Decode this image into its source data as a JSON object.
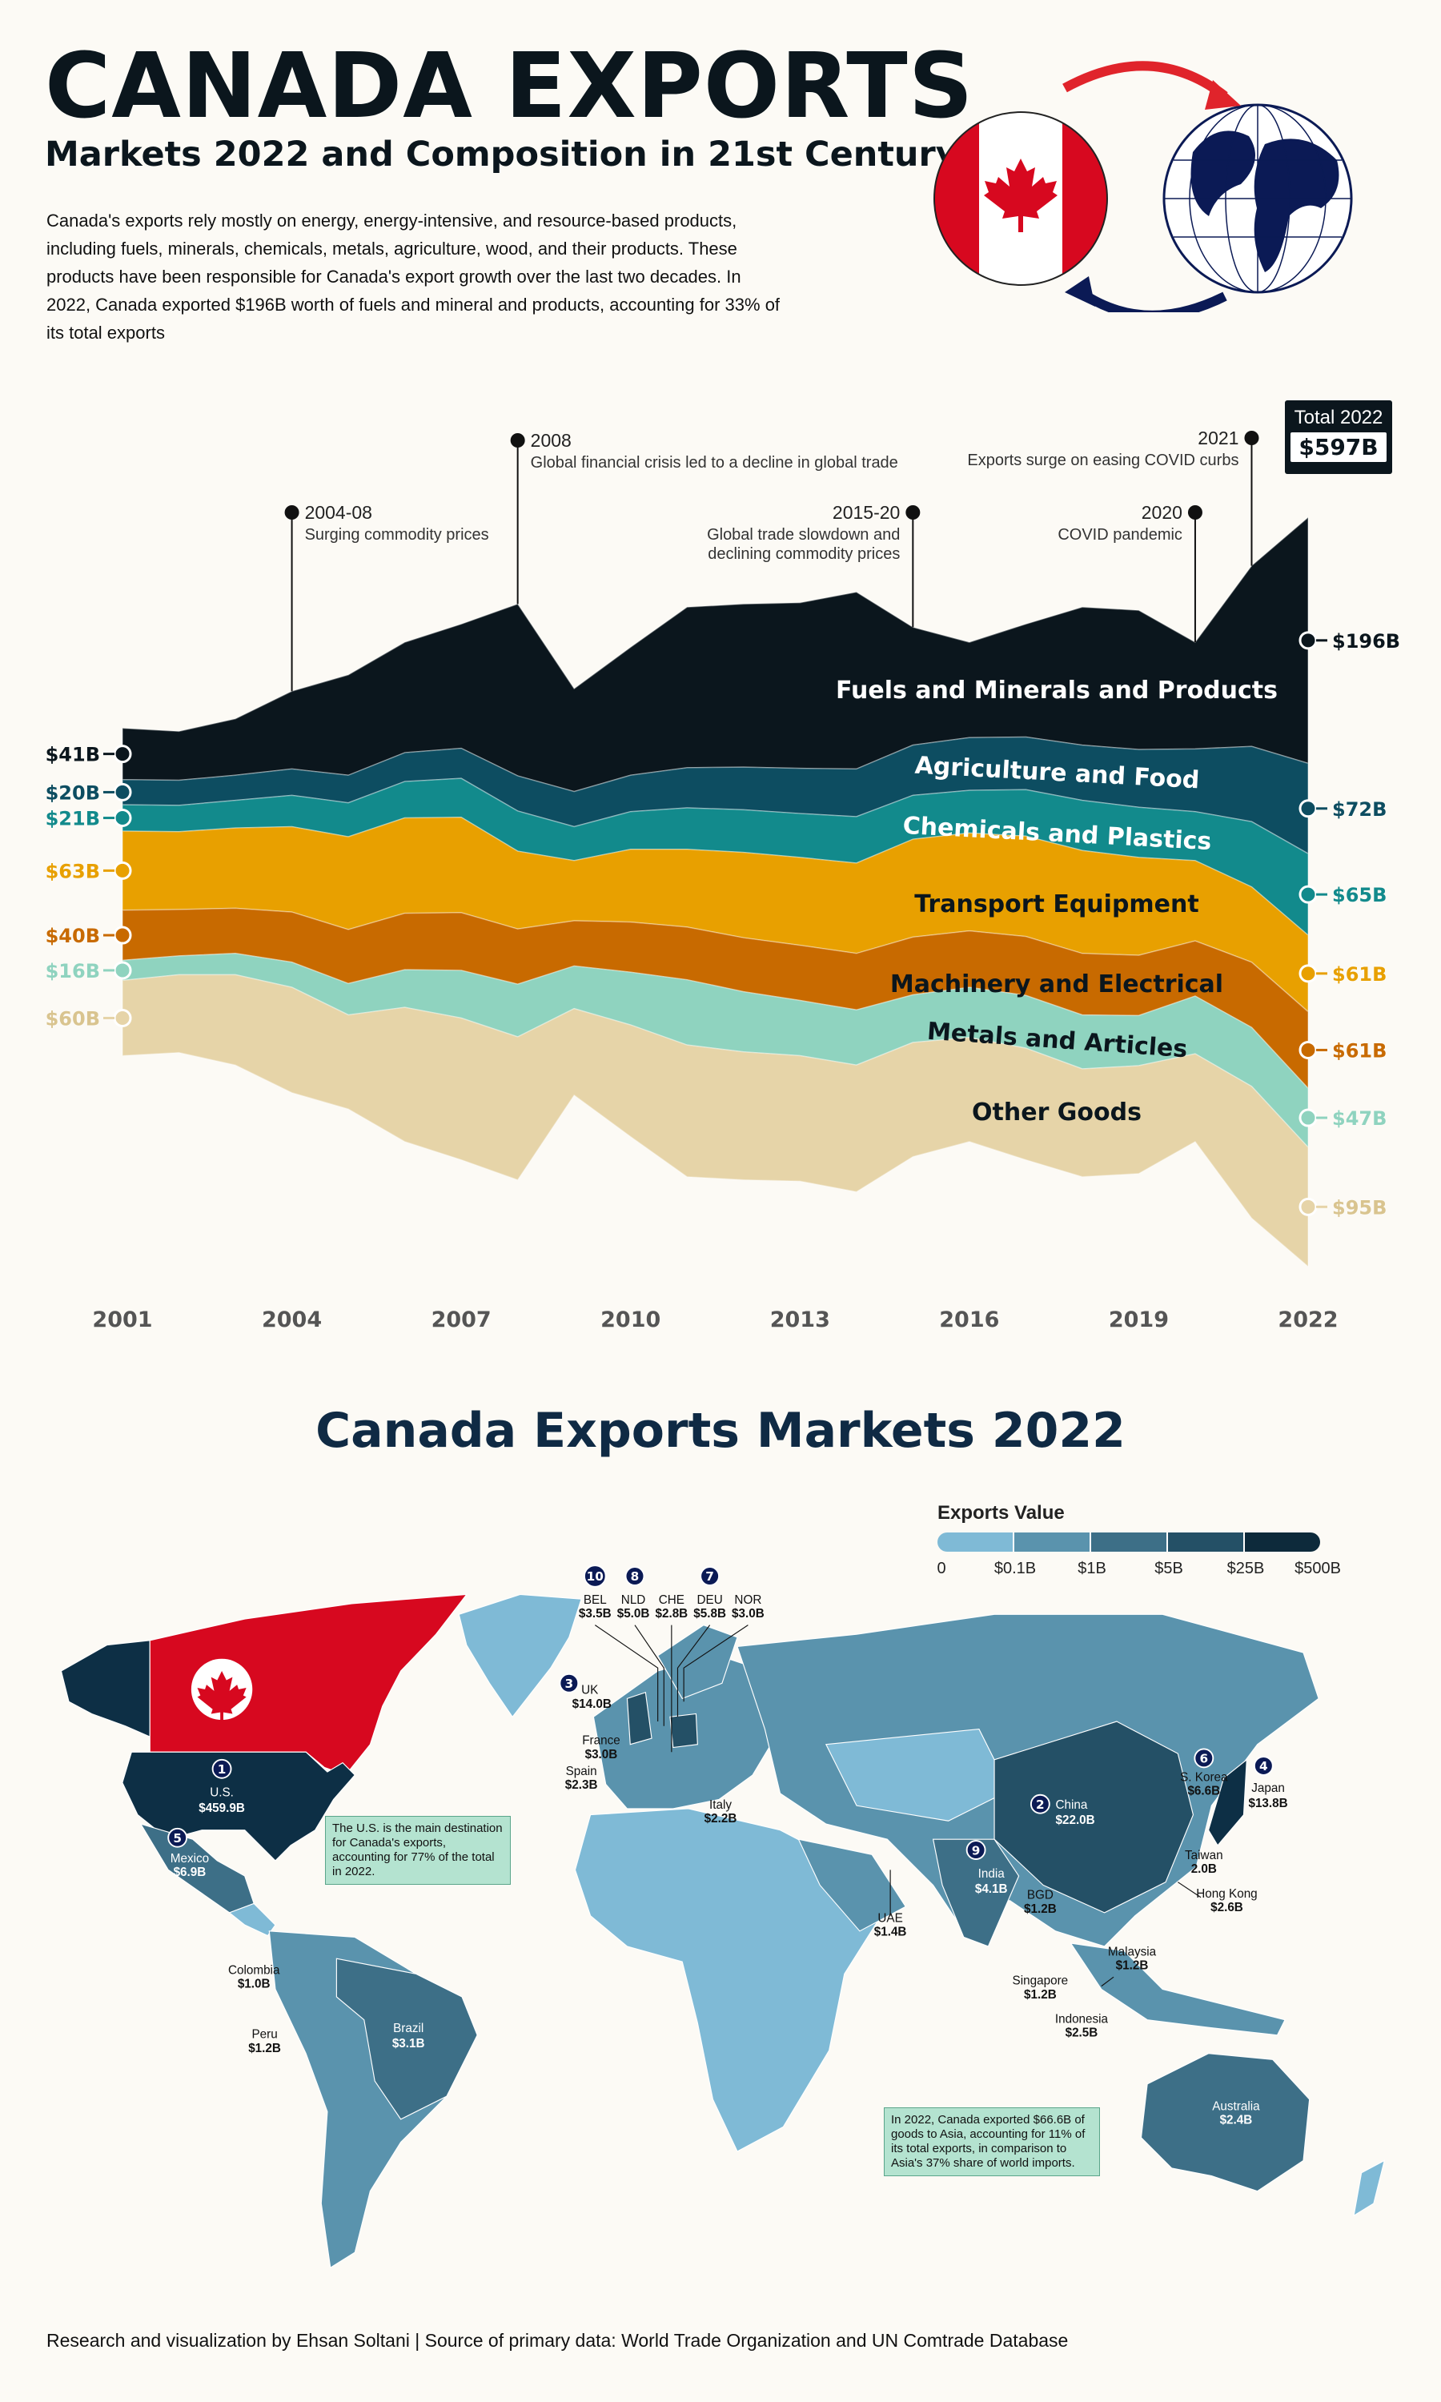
{
  "header": {
    "title": "CANADA EXPORTS",
    "subtitle": "Markets 2022 and Composition in 21st Century",
    "intro": "Canada's exports rely mostly on energy, energy-intensive, and resource-based products, including fuels, minerals, chemicals, metals, agriculture, wood, and their products. These products have been responsible for Canada's export growth over the last two decades. In 2022, Canada exported $196B worth of fuels  and mineral and products, accounting for 33% of its total exports"
  },
  "chart_data": {
    "type": "area",
    "subtype": "streamgraph-stacked",
    "x": [
      2001,
      2002,
      2003,
      2004,
      2005,
      2006,
      2007,
      2008,
      2009,
      2010,
      2011,
      2012,
      2013,
      2014,
      2015,
      2016,
      2017,
      2018,
      2019,
      2020,
      2021,
      2022
    ],
    "x_ticks": [
      "2001",
      "2004",
      "2007",
      "2010",
      "2013",
      "2016",
      "2019",
      "2022"
    ],
    "units": "USD billions",
    "total_label": "Total 2022",
    "total_value": "$597B",
    "series": [
      {
        "name": "Fuels and Minerals and Products",
        "color": "#0b161d",
        "label_color": "#ffffff",
        "start_label": "$41B",
        "end_label": "$196B",
        "values": [
          41,
          39,
          45,
          62,
          80,
          88,
          99,
          137,
          82,
          102,
          128,
          130,
          132,
          141,
          94,
          76,
          90,
          110,
          111,
          85,
          144,
          196
        ]
      },
      {
        "name": "Agriculture and Food",
        "color": "#0d4d61",
        "label_color": "#ffffff",
        "start_label": "$20B",
        "end_label": "$72B",
        "values": [
          20,
          20,
          20,
          21,
          22,
          23,
          24,
          28,
          28,
          29,
          32,
          34,
          36,
          38,
          40,
          42,
          42,
          44,
          46,
          50,
          60,
          72
        ]
      },
      {
        "name": "Chemicals and Plastics",
        "color": "#128a8c",
        "label_color": "#ffffff",
        "start_label": "$21B",
        "end_label": "$65B",
        "values": [
          21,
          21,
          22,
          25,
          27,
          29,
          31,
          32,
          27,
          30,
          33,
          34,
          35,
          37,
          35,
          34,
          37,
          40,
          40,
          39,
          52,
          65
        ]
      },
      {
        "name": "Transport Equipment",
        "color": "#e8a000",
        "label_color": "#0b161d",
        "start_label": "$63B",
        "end_label": "$61B",
        "values": [
          63,
          62,
          64,
          68,
          74,
          76,
          76,
          62,
          48,
          58,
          62,
          68,
          70,
          72,
          78,
          78,
          80,
          82,
          78,
          64,
          60,
          61
        ]
      },
      {
        "name": "Machinery and Electrical",
        "color": "#c86a00",
        "label_color": "#0b161d",
        "start_label": "$40B",
        "end_label": "$61B",
        "values": [
          40,
          37,
          36,
          40,
          43,
          45,
          46,
          44,
          36,
          40,
          42,
          43,
          44,
          45,
          46,
          45,
          47,
          49,
          48,
          44,
          52,
          61
        ]
      },
      {
        "name": "Metals and Articles",
        "color": "#8fd3bf",
        "label_color": "#0b161d",
        "start_label": "$16B",
        "end_label": "$47B",
        "values": [
          16,
          15,
          17,
          20,
          25,
          30,
          38,
          42,
          34,
          42,
          52,
          48,
          44,
          44,
          38,
          40,
          42,
          43,
          40,
          46,
          47,
          47
        ]
      },
      {
        "name": "Other Goods",
        "color": "#e6d4a8",
        "label_color": "#0b161d",
        "start_label": "$60B",
        "end_label": "$95B",
        "values": [
          60,
          62,
          72,
          84,
          75,
          107,
          113,
          114,
          69,
          89,
          105,
          102,
          100,
          101,
          91,
          83,
          89,
          86,
          86,
          70,
          105,
          95
        ]
      }
    ],
    "annotations": [
      {
        "year": 2004,
        "title": "2004-08",
        "text": [
          "Surging commodity prices"
        ]
      },
      {
        "year": 2008,
        "title": "2008",
        "text": [
          "Global financial crisis led to a decline in global trade"
        ]
      },
      {
        "year": 2015,
        "title": "2015-20",
        "text": [
          "Global trade slowdown and",
          "declining commodity prices"
        ]
      },
      {
        "year": 2020,
        "title": "2020",
        "text": [
          "COVID pandemic"
        ]
      },
      {
        "year": 2021,
        "title": "2021",
        "text": [
          "Exports surge on easing COVID curbs"
        ]
      }
    ]
  },
  "map": {
    "title": "Canada Exports Markets 2022",
    "legend": {
      "title": "Exports Value",
      "ticks": [
        "0",
        "$0.1B",
        "$1B",
        "$5B",
        "$25B",
        "$500B"
      ],
      "colors": [
        "#7fbad6",
        "#5a93ad",
        "#3d6f87",
        "#245066",
        "#0d2a3b"
      ]
    },
    "markets": {
      "us": {
        "rank": "1",
        "name": "U.S.",
        "value": "$459.9B"
      },
      "china": {
        "rank": "2",
        "name": "China",
        "value": "$22.0B"
      },
      "uk": {
        "rank": "3",
        "name": "UK",
        "value": "$14.0B"
      },
      "japan": {
        "rank": "4",
        "name": "Japan",
        "value": "$13.8B"
      },
      "mexico": {
        "rank": "5",
        "name": "Mexico",
        "value": "$6.9B"
      },
      "skorea": {
        "rank": "6",
        "name": "S. Korea",
        "value": "$6.6B"
      },
      "deu": {
        "rank": "7",
        "name": "DEU",
        "value": "$5.8B"
      },
      "nld": {
        "rank": "8",
        "name": "NLD",
        "value": "$5.0B"
      },
      "india": {
        "rank": "9",
        "name": "India",
        "value": "$4.1B"
      },
      "bel": {
        "rank": "10",
        "name": "BEL",
        "value": "$3.5B"
      },
      "che": {
        "name": "CHE",
        "value": "$2.8B"
      },
      "nor": {
        "name": "NOR",
        "value": "$3.0B"
      },
      "france": {
        "name": "France",
        "value": "$3.0B"
      },
      "spain": {
        "name": "Spain",
        "value": "$2.3B"
      },
      "italy": {
        "name": "Italy",
        "value": "$2.2B"
      },
      "uae": {
        "name": "UAE",
        "value": "$1.4B"
      },
      "bgd": {
        "name": "BGD",
        "value": "$1.2B"
      },
      "taiwan": {
        "name": "Taiwan",
        "value": "2.0B"
      },
      "hongkong": {
        "name": "Hong Kong",
        "value": "$2.6B"
      },
      "malaysia": {
        "name": "Malaysia",
        "value": "$1.2B"
      },
      "singapore": {
        "name": "Singapore",
        "value": "$1.2B"
      },
      "indonesia": {
        "name": "Indonesia",
        "value": "$2.5B"
      },
      "colombia": {
        "name": "Colombia",
        "value": "$1.0B"
      },
      "peru": {
        "name": "Peru",
        "value": "$1.2B"
      },
      "brazil": {
        "name": "Brazil",
        "value": "$3.1B"
      },
      "australia": {
        "name": "Australia",
        "value": "$2.4B"
      }
    },
    "note_us": "The U.S. is the main destination for Canada's exports, accounting for 77% of the total in 2022.",
    "note_asia": "In 2022, Canada exported $66.6B of goods to Asia, accounting for 11% of its total exports, in comparison to Asia's 37% share of world imports."
  },
  "footer": "Research and visualization by Ehsan Soltani | Source of primary data: World Trade Organization and UN Comtrade Database"
}
